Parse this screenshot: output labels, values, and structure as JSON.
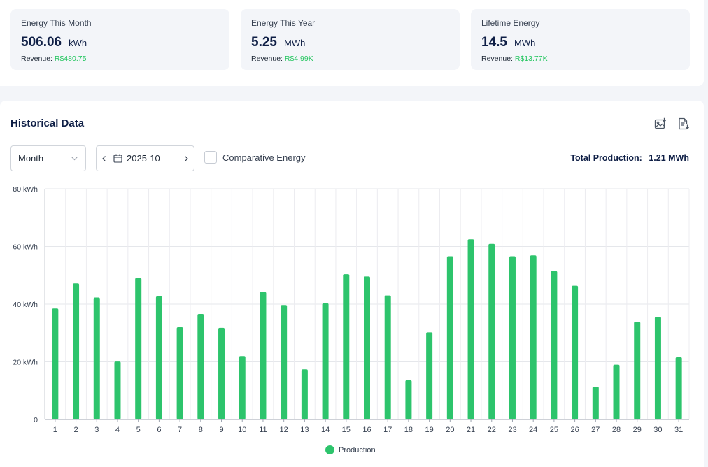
{
  "stats": [
    {
      "title": "Energy This Month",
      "value": "506.06",
      "unit": "kWh",
      "revenue_label": "Revenue:",
      "revenue_value": "R$480.75"
    },
    {
      "title": "Energy This Year",
      "value": "5.25",
      "unit": "MWh",
      "revenue_label": "Revenue:",
      "revenue_value": "R$4.99K"
    },
    {
      "title": "Lifetime Energy",
      "value": "14.5",
      "unit": "MWh",
      "revenue_label": "Revenue:",
      "revenue_value": "R$13.77K"
    }
  ],
  "historical": {
    "title": "Historical Data",
    "icons": {
      "export_image": "image-download-icon",
      "export_report": "document-download-icon"
    },
    "period_select": "Month",
    "date_value": "2025-10",
    "comparative_label": "Comparative Energy",
    "comparative_checked": false,
    "total_production_label": "Total Production:",
    "total_production_value": "1.21 MWh"
  },
  "chart_data": {
    "type": "bar",
    "categories": [
      "1",
      "2",
      "3",
      "4",
      "5",
      "6",
      "7",
      "8",
      "9",
      "10",
      "11",
      "12",
      "13",
      "14",
      "15",
      "16",
      "17",
      "18",
      "19",
      "20",
      "21",
      "22",
      "23",
      "24",
      "25",
      "26",
      "27",
      "28",
      "29",
      "30",
      "31"
    ],
    "series": [
      {
        "name": "Production",
        "color": "#2dc46c",
        "values": [
          38.5,
          47.2,
          42.3,
          20.1,
          49.1,
          42.7,
          32.0,
          36.6,
          31.8,
          22.0,
          44.2,
          39.7,
          17.4,
          40.3,
          50.4,
          49.6,
          43.0,
          13.6,
          30.2,
          56.6,
          62.5,
          60.9,
          56.6,
          56.9,
          51.5,
          46.4,
          11.4,
          19.0,
          33.9,
          35.6,
          21.6
        ]
      }
    ],
    "yticks": [
      "0",
      "20 kWh",
      "40 kWh",
      "60 kWh",
      "80 kWh"
    ],
    "ylim": [
      0,
      80
    ],
    "grid": true,
    "legend_position": "bottom-center"
  }
}
